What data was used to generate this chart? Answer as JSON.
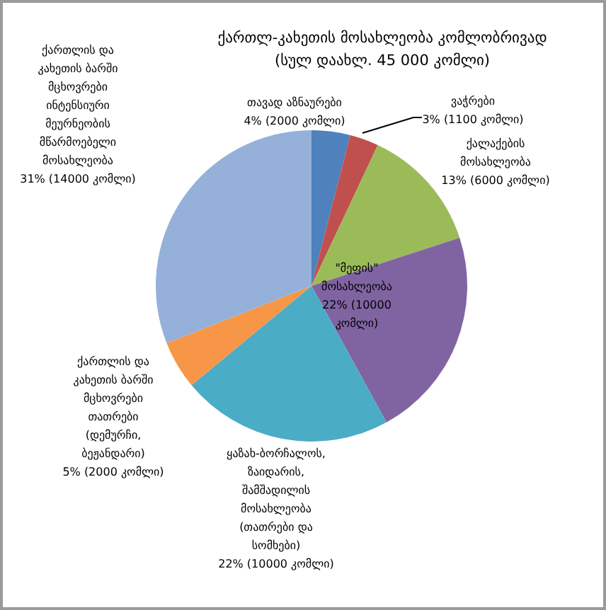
{
  "chart_data": {
    "type": "pie",
    "title": "ქართლ-კახეთის მოსახლეობა კომლობრივად",
    "subtitle": "(სულ დაახლ. 45 000 კომლი)",
    "categories": [
      "თავად აზნაურები",
      "ვაჭრები",
      "ქალაქების მოსახლეობა",
      "\"მეფის\" მოსახლეობა",
      "ყაზახ-ბორჩალოს, ზაიდარის, შამშადილის მოსახლეობა (თათრები და სომხები)",
      "ქართლის და კახეთის ბარში მცხოვრები თათრები (დემურჩი, ბეჟანდარი)",
      "ქართლის და კახეთის ბარში მცხოვრები ინტენსიური მეურნეობის მწარმოებელი მოსახლეობა"
    ],
    "values": [
      4,
      3,
      13,
      22,
      22,
      5,
      31
    ],
    "value_labels": [
      "4% (2000 კომლი)",
      "3% (1100 კომლი)",
      "13% (6000 კომლი)",
      "22% (10000 კომლი)",
      "22% (10000 კომლი)",
      "5% (2000 კომლი)",
      "31% (14000 კომლი)"
    ],
    "colors": [
      "#4f81bd",
      "#c0504d",
      "#9bbb59",
      "#8064a2",
      "#4bacc6",
      "#f79646",
      "#95b1d9"
    ],
    "legend": false
  }
}
